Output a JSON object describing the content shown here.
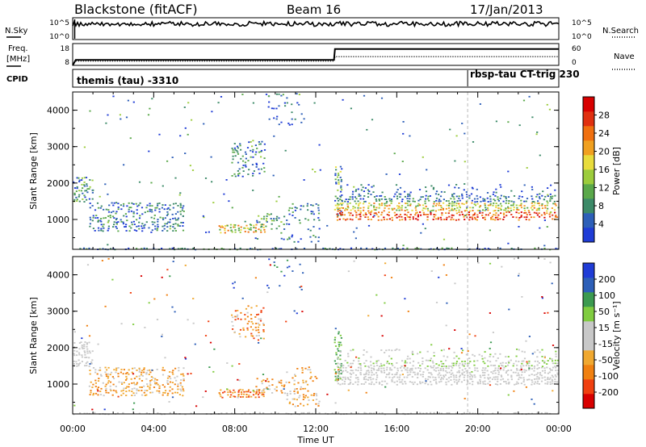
{
  "header": {
    "station": "Blackstone (fitACF)",
    "beam": "Beam 16",
    "date": "17/Jan/2013"
  },
  "panel_labels": {
    "nsky": "N.Sky",
    "nsearch": "N.Search",
    "freq_line1": "Freq.",
    "freq_line2": "[MHz]",
    "nave": "Nave",
    "cpid": "CPID"
  },
  "cpid_labels": {
    "first": "themis (tau) -3310",
    "second": "rbsp-tau CT-trig 230"
  },
  "colors": {
    "power": [
      "#1f3cd6",
      "#2d5fb8",
      "#3c8a68",
      "#5aa84a",
      "#9ccc3c",
      "#e8dc3c",
      "#f0a020",
      "#f07010",
      "#e03010",
      "#d80000"
    ],
    "velocity": [
      "#d80000",
      "#f04010",
      "#f08010",
      "#f0a830",
      "#c8c8c8",
      "#c8c8c8",
      "#80cc40",
      "#3c9a50",
      "#2d5fb8",
      "#1f3cd6"
    ]
  },
  "chart_data": [
    {
      "type": "line",
      "name": "noise",
      "ylabels": [
        "10^5",
        "10^0"
      ],
      "right_labels": [
        "10^5",
        "10^0"
      ],
      "series": [
        {
          "name": "N.Sky",
          "style": "solid",
          "level": 0.75
        },
        {
          "name": "N.Search",
          "style": "dotted",
          "level": null
        }
      ]
    },
    {
      "type": "line",
      "name": "frequency",
      "yticks_left": [
        "18",
        "8"
      ],
      "yticks_right": [
        "60",
        "0"
      ],
      "series": [
        {
          "name": "Freq.",
          "style": "solid",
          "x": [
            0.0,
            0.15,
            12.9,
            12.95,
            24.0
          ],
          "y": [
            8,
            10.5,
            10.5,
            15.5,
            15.5
          ]
        },
        {
          "name": "Nave",
          "style": "dotted",
          "x": [
            0.15,
            12.9,
            12.95,
            24.0
          ],
          "y": [
            10,
            10,
            12,
            12
          ]
        }
      ],
      "xlim": [
        0,
        24
      ],
      "ylim": [
        8,
        18
      ],
      "cpid_change_hour": 19.5
    },
    {
      "type": "heatmap",
      "name": "power",
      "xlabel": "",
      "ylabel": "Slant Range [km]",
      "xlim": [
        0,
        24
      ],
      "ylim": [
        180,
        4500
      ],
      "yticks": [
        1000,
        2000,
        3000,
        4000
      ],
      "colorbar": {
        "label": "Power [dB]",
        "ticks": [
          "4",
          "8",
          "12",
          "16",
          "20",
          "24",
          "28"
        ]
      }
    },
    {
      "type": "heatmap",
      "name": "velocity",
      "xlabel": "Time UT",
      "ylabel": "Slant Range [km]",
      "xlim": [
        0,
        24
      ],
      "ylim": [
        180,
        4500
      ],
      "yticks": [
        1000,
        2000,
        3000,
        4000
      ],
      "xticks": [
        "00:00",
        "04:00",
        "08:00",
        "12:00",
        "16:00",
        "20:00",
        "00:00"
      ],
      "colorbar": {
        "label": "Velocity [m s⁻¹]",
        "ticks": [
          "200",
          "100",
          "50",
          "15",
          "-15",
          "-50",
          "-100",
          "-200"
        ]
      }
    }
  ]
}
